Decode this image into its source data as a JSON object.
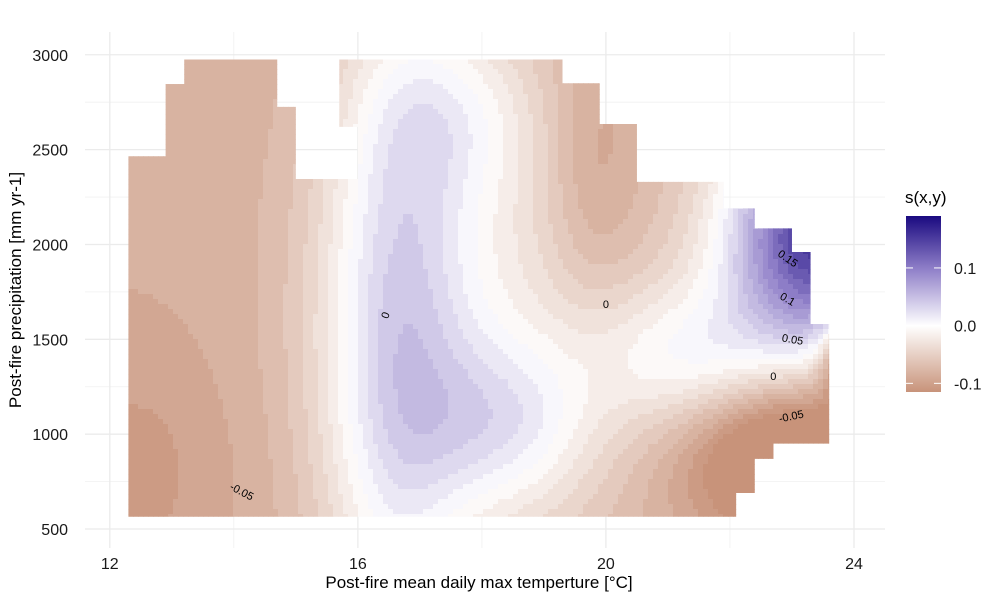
{
  "chart_data": {
    "type": "heatmap",
    "title": "",
    "xlabel": "Post-fire mean daily max temperture [°C]",
    "ylabel": "Post-fire precipitation [mm yr-1]",
    "xlim": [
      11.6,
      24.5
    ],
    "ylim": [
      400,
      3120
    ],
    "x_ticks": [
      "12",
      "16",
      "20",
      "24"
    ],
    "y_ticks": [
      "500",
      "1000",
      "1500",
      "2000",
      "2500",
      "3000"
    ],
    "grid": true,
    "legend": {
      "title": "s(x,y)",
      "placement": "right",
      "range": [
        -0.115,
        0.19
      ],
      "ticks": [
        "0.1",
        "0.0",
        "-0.1"
      ],
      "colors": {
        "low": "#c8937a",
        "mid": "#ffffff",
        "high": "#1a0a80"
      }
    },
    "contour_labels": [
      {
        "text": "-0.05",
        "x": 14.1,
        "y": 680,
        "angle": 28
      },
      {
        "text": "0",
        "x": 16.5,
        "y": 1620,
        "angle": -70
      },
      {
        "text": "0",
        "x": 20.0,
        "y": 1665,
        "angle": 0
      },
      {
        "text": "0.15",
        "x": 22.9,
        "y": 1910,
        "angle": 35
      },
      {
        "text": "0.1",
        "x": 22.9,
        "y": 1695,
        "angle": 30
      },
      {
        "text": "0.05",
        "x": 23.0,
        "y": 1480,
        "angle": 10
      },
      {
        "text": "0",
        "x": 22.7,
        "y": 1285,
        "angle": 0
      },
      {
        "text": "-0.05",
        "x": 23.0,
        "y": 1075,
        "angle": -12
      }
    ]
  }
}
